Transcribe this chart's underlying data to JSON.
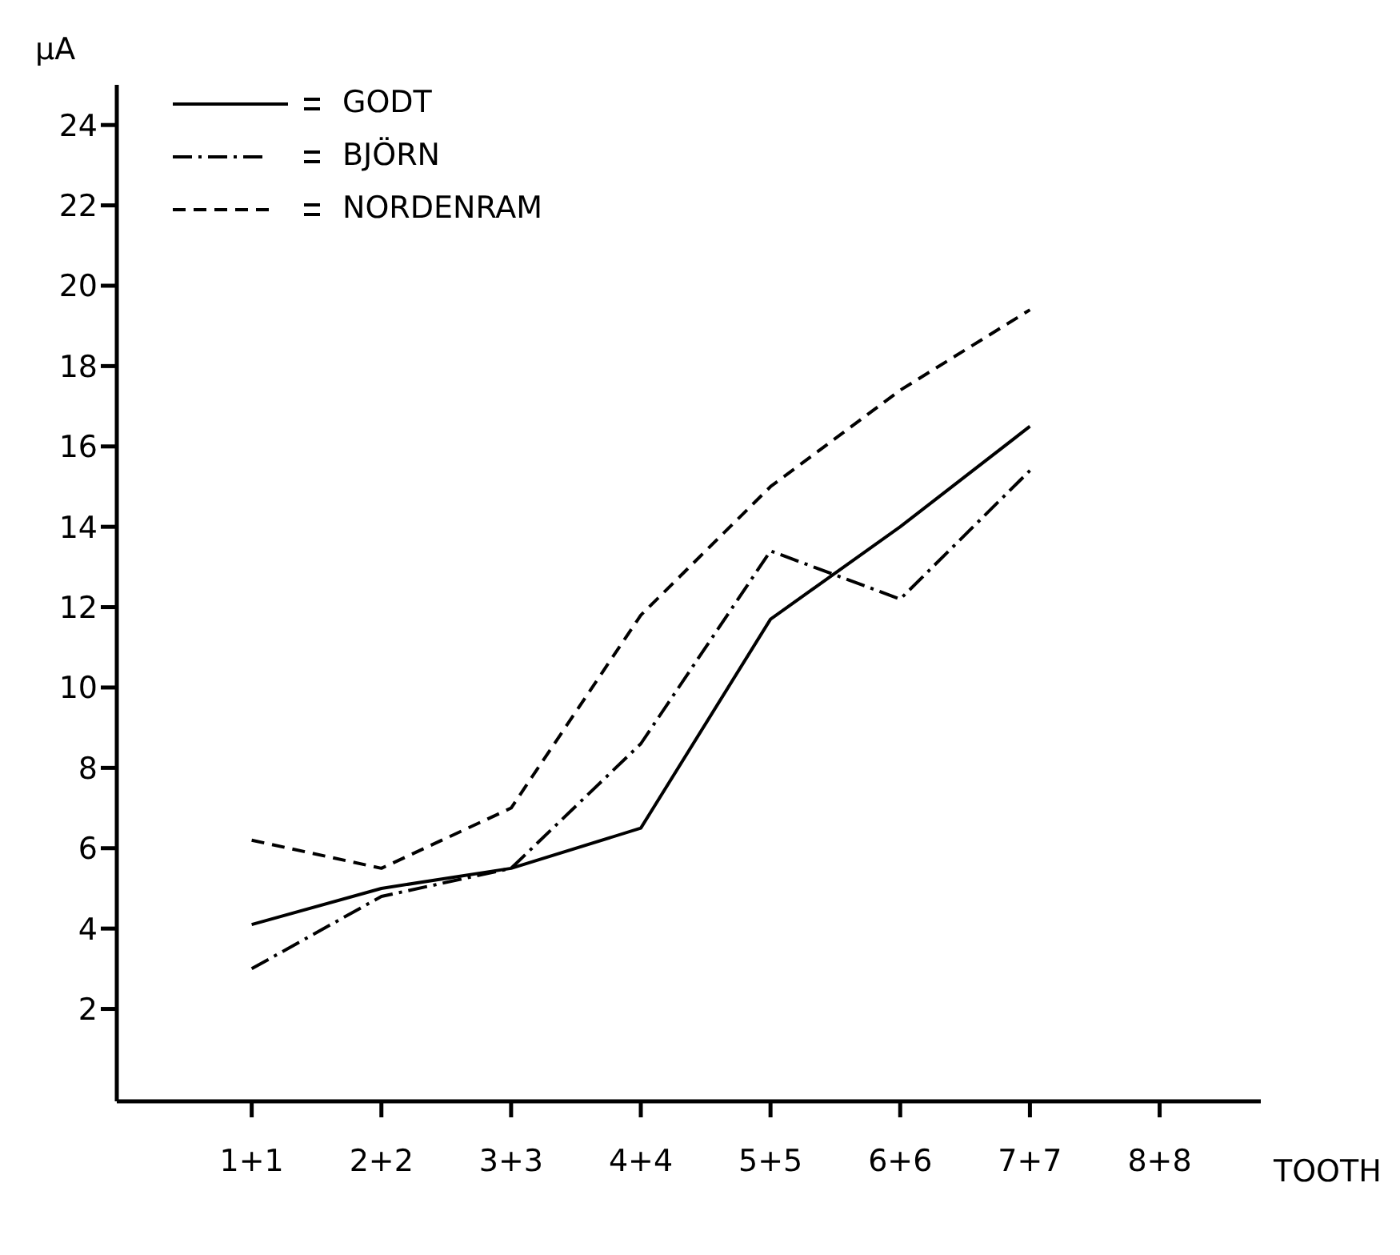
{
  "chart_data": {
    "type": "line",
    "xlabel": "TOOTH",
    "ylabel": "µA",
    "categories": [
      "1+1",
      "2+2",
      "3+3",
      "4+4",
      "5+5",
      "6+6",
      "7+7",
      "8+8"
    ],
    "series": [
      {
        "name": "GODT",
        "color": "#000000",
        "line_style": "solid",
        "values": [
          4.1,
          5.0,
          5.5,
          6.5,
          11.7,
          14.0,
          16.5,
          null
        ]
      },
      {
        "name": "BJÖRN",
        "color": "#000000",
        "line_style": "dashdot",
        "values": [
          3.0,
          4.8,
          5.5,
          8.6,
          13.4,
          12.2,
          15.4,
          null
        ]
      },
      {
        "name": "NORDENRAM",
        "color": "#000000",
        "line_style": "dashed",
        "values": [
          6.2,
          5.5,
          7.0,
          11.8,
          15.0,
          17.4,
          19.4,
          null
        ]
      }
    ],
    "ylim": [
      -0.3,
      25
    ],
    "yticks": [
      2,
      4,
      6,
      8,
      10,
      12,
      14,
      16,
      18,
      20,
      22,
      24
    ],
    "grid": false,
    "legend": "top left",
    "marker": "none"
  }
}
